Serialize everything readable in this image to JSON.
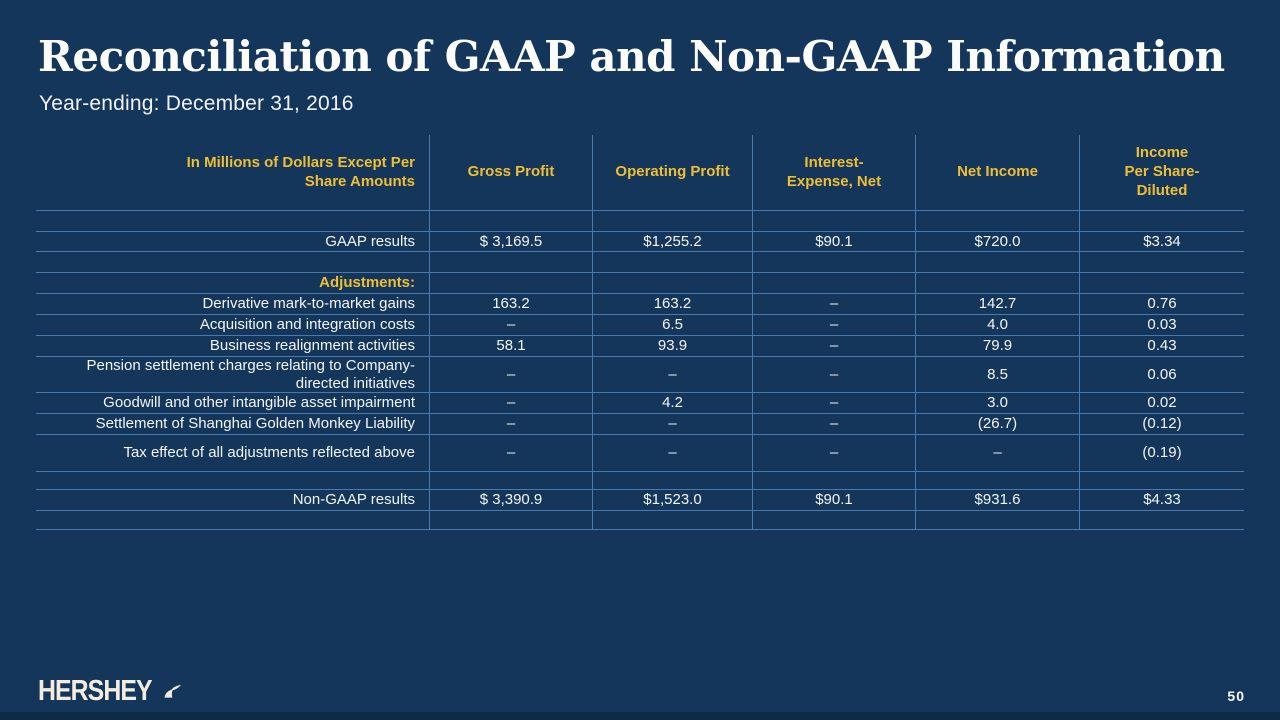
{
  "slide": {
    "title": "Reconciliation of GAAP and Non-GAAP Information",
    "subtitle": "Year-ending: December 31, 2016",
    "page_number": "50",
    "logo_text": "HERSHEY",
    "colors": {
      "background": "#14365a",
      "grid": "#4a7aac",
      "accent_gold": "#f0be33",
      "text": "#f2f5f8",
      "logo_cream": "#f4eddf",
      "footer_strip": "#0e2a44"
    }
  },
  "table": {
    "header": [
      [
        "In Millions of Dollars Except Per",
        "Share Amounts"
      ],
      [
        "Gross Profit"
      ],
      [
        "Operating Profit"
      ],
      [
        "Interest-",
        "Expense, Net"
      ],
      [
        "Net Income"
      ],
      [
        "Income",
        "Per Share-",
        "Diluted"
      ]
    ],
    "rows": [
      {
        "kind": "blank",
        "label": "",
        "values": [
          "",
          "",
          "",
          "",
          ""
        ]
      },
      {
        "kind": "data",
        "label": "GAAP results",
        "values": [
          "$ 3,169.5",
          "$1,255.2",
          "$90.1",
          "$720.0",
          "$3.34"
        ]
      },
      {
        "kind": "blank",
        "label": "",
        "values": [
          "",
          "",
          "",
          "",
          ""
        ]
      },
      {
        "kind": "section",
        "label": "Adjustments:",
        "values": [
          "",
          "",
          "",
          "",
          ""
        ]
      },
      {
        "kind": "data",
        "label": "Derivative mark-to-market gains",
        "values": [
          "163.2",
          "163.2",
          "–",
          "142.7",
          "0.76"
        ]
      },
      {
        "kind": "data",
        "label": "Acquisition and integration costs",
        "values": [
          "–",
          "6.5",
          "–",
          "4.0",
          "0.03"
        ]
      },
      {
        "kind": "data",
        "label": "Business realignment activities",
        "values": [
          "58.1",
          "93.9",
          "–",
          "79.9",
          "0.43"
        ]
      },
      {
        "kind": "data",
        "label": "Pension settlement charges relating to Company-directed initiatives",
        "values": [
          "–",
          "–",
          "–",
          "8.5",
          "0.06"
        ]
      },
      {
        "kind": "data",
        "label": "Goodwill and other intangible asset impairment",
        "values": [
          "–",
          "4.2",
          "–",
          "3.0",
          "0.02"
        ]
      },
      {
        "kind": "data",
        "label": "Settlement of Shanghai Golden Monkey Liability",
        "values": [
          "–",
          "–",
          "–",
          "(26.7)",
          "(0.12)"
        ]
      },
      {
        "kind": "data",
        "label": "Tax effect of all adjustments reflected above",
        "values": [
          "–",
          "–",
          "–",
          "–",
          "(0.19)"
        ]
      },
      {
        "kind": "blank",
        "label": "",
        "values": [
          "",
          "",
          "",
          "",
          ""
        ]
      },
      {
        "kind": "data",
        "label": "Non-GAAP results",
        "values": [
          "$ 3,390.9",
          "$1,523.0",
          "$90.1",
          "$931.6",
          "$4.33"
        ]
      },
      {
        "kind": "blank",
        "label": "",
        "values": [
          "",
          "",
          "",
          "",
          ""
        ]
      }
    ]
  }
}
